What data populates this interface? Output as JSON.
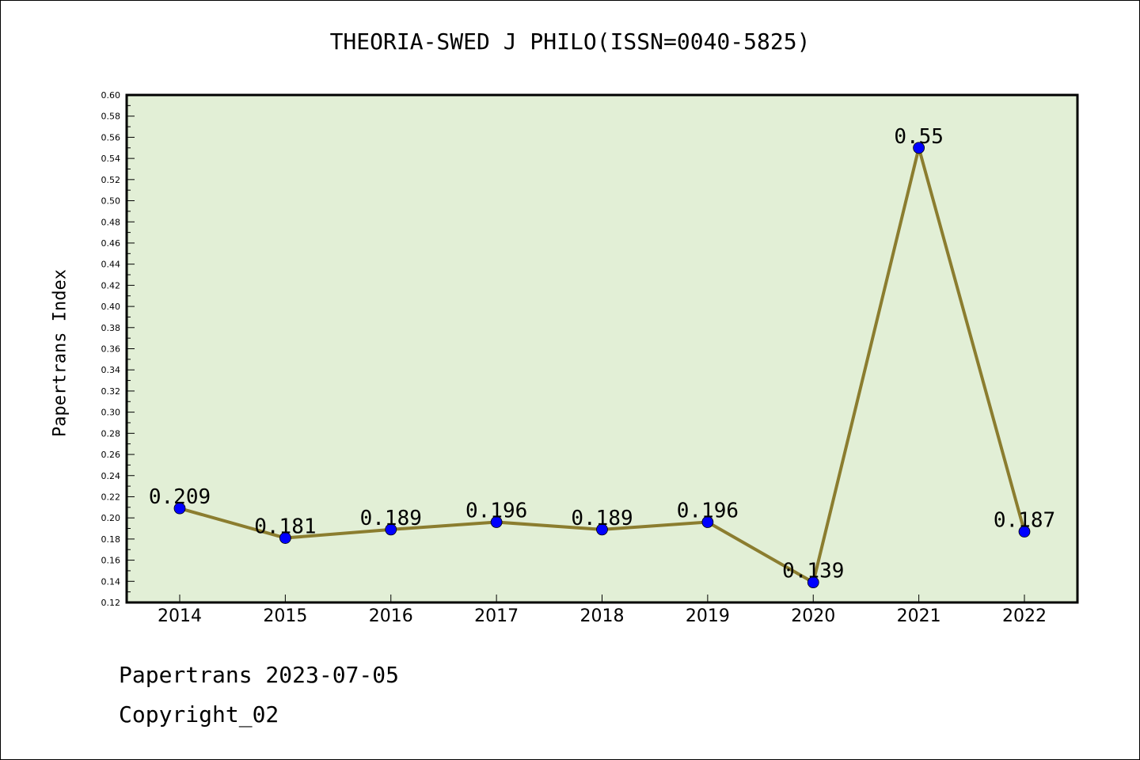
{
  "chart_data": {
    "type": "line",
    "title": "THEORIA-SWED J PHILO(ISSN=0040-5825)",
    "xlabel": "",
    "ylabel": "Papertrans Index",
    "categories": [
      "2014",
      "2015",
      "2016",
      "2017",
      "2018",
      "2019",
      "2020",
      "2021",
      "2022"
    ],
    "series": [
      {
        "values": [
          0.209,
          0.181,
          0.189,
          0.196,
          0.189,
          0.196,
          0.139,
          0.55,
          0.187
        ],
        "data_labels": [
          "0.209",
          "0.181",
          "0.189",
          "0.196",
          "0.189",
          "0.196",
          "0.139",
          "0.55",
          "0.187"
        ]
      }
    ],
    "ylim": [
      0.12,
      0.6
    ],
    "yticks": [
      "0.12",
      "0.14",
      "0.16",
      "0.18",
      "0.20",
      "0.22",
      "0.24",
      "0.26",
      "0.28",
      "0.30",
      "0.32",
      "0.34",
      "0.36",
      "0.38",
      "0.40",
      "0.42",
      "0.44",
      "0.46",
      "0.48",
      "0.50",
      "0.52",
      "0.54",
      "0.56",
      "0.58",
      "0.60"
    ],
    "grid": false,
    "legend": "none",
    "colors": {
      "plot_background": "#e2efd6",
      "line": "#8b7d2f",
      "marker": "#0000ff"
    }
  },
  "footer": {
    "line1": "Papertrans 2023-07-05",
    "line2": "Copyright_02"
  }
}
